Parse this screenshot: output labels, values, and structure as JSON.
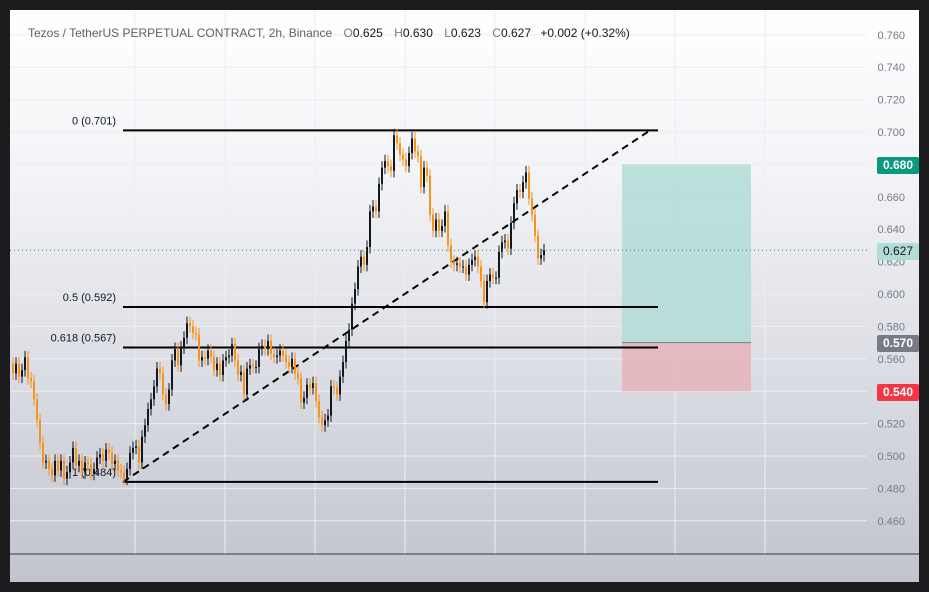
{
  "header": {
    "symbol": "Tezos / TetherUS PERPETUAL CONTRACT, 2h, Binance",
    "open_label": "O",
    "open": "0.625",
    "high_label": "H",
    "high": "0.630",
    "low_label": "L",
    "low": "0.623",
    "close_label": "C",
    "close": "0.627",
    "change": "+0.002 (+0.32%)"
  },
  "price_tags": {
    "take_profit": "0.680",
    "current": "0.627",
    "entry": "0.570",
    "stop_loss": "0.540"
  },
  "colors": {
    "up_candle": "#131722",
    "down_candle": "#f7931a",
    "take_profit": "#089981",
    "entry": "#787b86",
    "stop_loss": "#f23645",
    "profit_zone": "#b2dcd6",
    "loss_zone": "#e6b3ba"
  },
  "chart_data": {
    "type": "line",
    "title": "Tezos / TetherUS PERPETUAL CONTRACT, 2h, Binance",
    "y_axis": {
      "ticks": [
        "0.760",
        "0.740",
        "0.720",
        "0.700",
        "0.680",
        "0.660",
        "0.640",
        "0.620",
        "0.600",
        "0.580",
        "0.560",
        "0.540",
        "0.520",
        "0.500",
        "0.480",
        "0.460"
      ],
      "range": [
        0.44,
        0.77
      ],
      "position": "right"
    },
    "grid": true,
    "fibonacci_levels": [
      {
        "label": "0 (0.701)",
        "value": 0.701
      },
      {
        "label": "0.5 (0.592)",
        "value": 0.592
      },
      {
        "label": "0.618 (0.567)",
        "value": 0.567
      },
      {
        "label": "1 (0.484)",
        "value": 0.484
      }
    ],
    "trendline": {
      "from": [
        113,
        0.484
      ],
      "to": [
        640,
        0.701
      ],
      "style": "dashed"
    },
    "position_tool": {
      "entry": 0.57,
      "take_profit": 0.68,
      "stop_loss": 0.54
    },
    "price_path": [
      [
        0,
        0.557
      ],
      [
        3,
        0.551
      ],
      [
        6,
        0.557
      ],
      [
        9,
        0.549
      ],
      [
        12,
        0.553
      ],
      [
        15,
        0.561
      ],
      [
        18,
        0.548
      ],
      [
        21,
        0.546
      ],
      [
        24,
        0.535
      ],
      [
        27,
        0.522
      ],
      [
        30,
        0.508
      ],
      [
        33,
        0.496
      ],
      [
        36,
        0.497
      ],
      [
        39,
        0.492
      ],
      [
        42,
        0.488
      ],
      [
        45,
        0.497
      ],
      [
        48,
        0.491
      ],
      [
        51,
        0.497
      ],
      [
        54,
        0.486
      ],
      [
        57,
        0.49
      ],
      [
        60,
        0.496
      ],
      [
        63,
        0.505
      ],
      [
        66,
        0.494
      ],
      [
        69,
        0.497
      ],
      [
        72,
        0.49
      ],
      [
        75,
        0.496
      ],
      [
        78,
        0.495
      ],
      [
        81,
        0.489
      ],
      [
        84,
        0.492
      ],
      [
        87,
        0.499
      ],
      [
        90,
        0.501
      ],
      [
        93,
        0.497
      ],
      [
        96,
        0.504
      ],
      [
        99,
        0.502
      ],
      [
        102,
        0.495
      ],
      [
        105,
        0.497
      ],
      [
        108,
        0.491
      ],
      [
        111,
        0.49
      ],
      [
        114,
        0.486
      ],
      [
        117,
        0.492
      ],
      [
        120,
        0.502
      ],
      [
        123,
        0.505
      ],
      [
        126,
        0.506
      ],
      [
        129,
        0.496
      ],
      [
        132,
        0.512
      ],
      [
        135,
        0.519
      ],
      [
        138,
        0.529
      ],
      [
        141,
        0.535
      ],
      [
        144,
        0.543
      ],
      [
        147,
        0.554
      ],
      [
        150,
        0.551
      ],
      [
        153,
        0.538
      ],
      [
        156,
        0.532
      ],
      [
        159,
        0.541
      ],
      [
        162,
        0.559
      ],
      [
        165,
        0.566
      ],
      [
        168,
        0.556
      ],
      [
        171,
        0.567
      ],
      [
        174,
        0.573
      ],
      [
        177,
        0.582
      ],
      [
        180,
        0.58
      ],
      [
        183,
        0.576
      ],
      [
        186,
        0.575
      ],
      [
        189,
        0.559
      ],
      [
        192,
        0.561
      ],
      [
        195,
        0.56
      ],
      [
        198,
        0.565
      ],
      [
        201,
        0.561
      ],
      [
        204,
        0.553
      ],
      [
        207,
        0.557
      ],
      [
        210,
        0.55
      ],
      [
        213,
        0.559
      ],
      [
        216,
        0.561
      ],
      [
        219,
        0.562
      ],
      [
        222,
        0.569
      ],
      [
        225,
        0.559
      ],
      [
        228,
        0.55
      ],
      [
        231,
        0.552
      ],
      [
        234,
        0.538
      ],
      [
        237,
        0.554
      ],
      [
        240,
        0.556
      ],
      [
        243,
        0.555
      ],
      [
        246,
        0.555
      ],
      [
        249,
        0.566
      ],
      [
        252,
        0.568
      ],
      [
        255,
        0.566
      ],
      [
        258,
        0.571
      ],
      [
        261,
        0.563
      ],
      [
        264,
        0.561
      ],
      [
        267,
        0.562
      ],
      [
        270,
        0.565
      ],
      [
        273,
        0.562
      ],
      [
        276,
        0.558
      ],
      [
        279,
        0.555
      ],
      [
        282,
        0.56
      ],
      [
        285,
        0.551
      ],
      [
        288,
        0.548
      ],
      [
        291,
        0.533
      ],
      [
        294,
        0.536
      ],
      [
        297,
        0.544
      ],
      [
        300,
        0.542
      ],
      [
        303,
        0.545
      ],
      [
        306,
        0.534
      ],
      [
        309,
        0.524
      ],
      [
        312,
        0.519
      ],
      [
        315,
        0.522
      ],
      [
        318,
        0.525
      ],
      [
        321,
        0.543
      ],
      [
        324,
        0.542
      ],
      [
        327,
        0.538
      ],
      [
        330,
        0.549
      ],
      [
        333,
        0.558
      ],
      [
        336,
        0.571
      ],
      [
        339,
        0.578
      ],
      [
        342,
        0.594
      ],
      [
        345,
        0.603
      ],
      [
        348,
        0.617
      ],
      [
        351,
        0.623
      ],
      [
        354,
        0.618
      ],
      [
        357,
        0.629
      ],
      [
        360,
        0.651
      ],
      [
        363,
        0.654
      ],
      [
        366,
        0.651
      ],
      [
        369,
        0.668
      ],
      [
        372,
        0.678
      ],
      [
        375,
        0.682
      ],
      [
        378,
        0.679
      ],
      [
        381,
        0.676
      ],
      [
        384,
        0.698
      ],
      [
        387,
        0.693
      ],
      [
        390,
        0.686
      ],
      [
        393,
        0.683
      ],
      [
        396,
        0.679
      ],
      [
        399,
        0.687
      ],
      [
        402,
        0.696
      ],
      [
        405,
        0.688
      ],
      [
        408,
        0.685
      ],
      [
        411,
        0.666
      ],
      [
        414,
        0.678
      ],
      [
        417,
        0.673
      ],
      [
        420,
        0.649
      ],
      [
        423,
        0.639
      ],
      [
        426,
        0.646
      ],
      [
        429,
        0.639
      ],
      [
        432,
        0.642
      ],
      [
        435,
        0.651
      ],
      [
        438,
        0.63
      ],
      [
        441,
        0.62
      ],
      [
        444,
        0.618
      ],
      [
        447,
        0.619
      ],
      [
        450,
        0.617
      ],
      [
        453,
        0.617
      ],
      [
        456,
        0.612
      ],
      [
        459,
        0.618
      ],
      [
        462,
        0.621
      ],
      [
        465,
        0.623
      ],
      [
        468,
        0.617
      ],
      [
        471,
        0.608
      ],
      [
        474,
        0.595
      ],
      [
        477,
        0.608
      ],
      [
        480,
        0.612
      ],
      [
        483,
        0.61
      ],
      [
        486,
        0.61
      ],
      [
        489,
        0.626
      ],
      [
        492,
        0.632
      ],
      [
        495,
        0.633
      ],
      [
        498,
        0.628
      ],
      [
        501,
        0.644
      ],
      [
        504,
        0.656
      ],
      [
        507,
        0.664
      ],
      [
        510,
        0.663
      ],
      [
        513,
        0.669
      ],
      [
        516,
        0.675
      ],
      [
        519,
        0.659
      ],
      [
        522,
        0.649
      ],
      [
        525,
        0.636
      ],
      [
        528,
        0.622
      ],
      [
        531,
        0.624
      ],
      [
        534,
        0.627
      ]
    ]
  }
}
